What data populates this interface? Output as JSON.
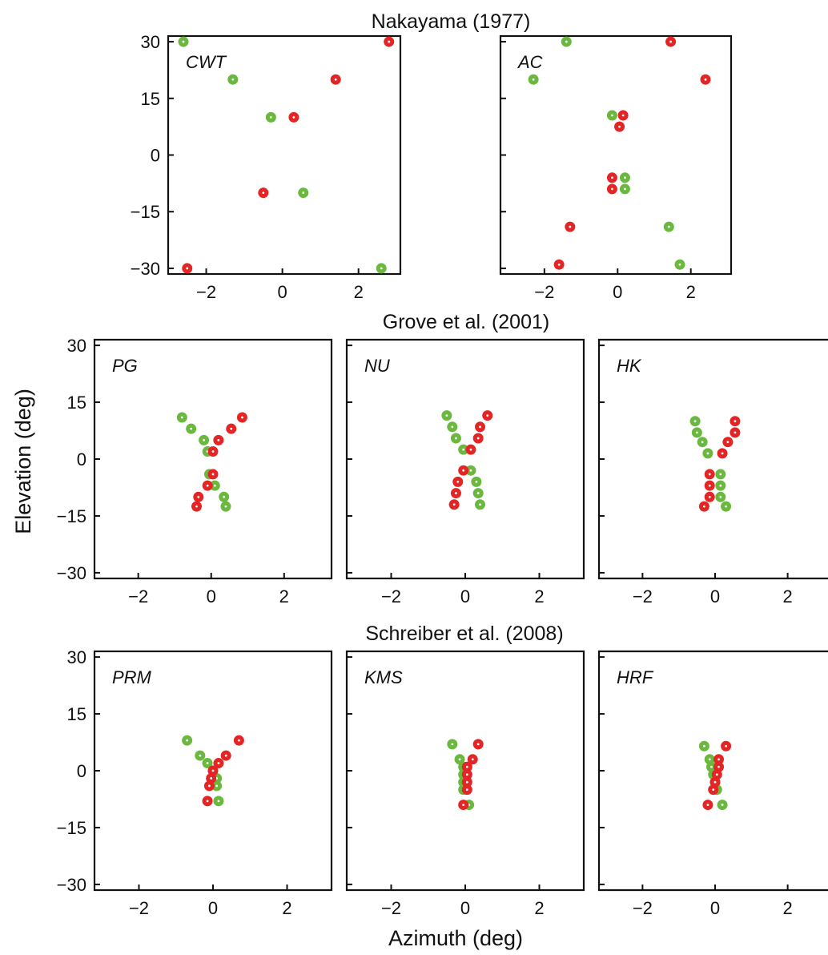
{
  "figure": {
    "xlabel": "Azimuth (deg)",
    "ylabel": "Elevation (deg)"
  },
  "groups": [
    {
      "title": "Nakayama (1977)"
    },
    {
      "title": "Grove et al. (2001)"
    },
    {
      "title": "Schreiber et al. (2008)"
    }
  ],
  "colors": {
    "green": "#6ab83e",
    "red": "#e42525",
    "axis": "#111111"
  },
  "chart_data": [
    {
      "type": "scatter",
      "group": "Nakayama (1977)",
      "panel_label": "CWT",
      "xlim": [
        -3,
        3.1
      ],
      "ylim": [
        -31.5,
        31.5
      ],
      "xticks": [
        -2,
        0,
        2
      ],
      "yticks": [
        30,
        15,
        0,
        -15,
        -30
      ],
      "series": [
        {
          "color": "green",
          "points": [
            [
              -2.6,
              30
            ],
            [
              -1.3,
              20
            ],
            [
              -0.3,
              10
            ],
            [
              0.55,
              -10
            ],
            [
              2.6,
              -30
            ]
          ]
        },
        {
          "color": "red",
          "points": [
            [
              2.8,
              30
            ],
            [
              1.4,
              20
            ],
            [
              0.3,
              10
            ],
            [
              -0.5,
              -10
            ],
            [
              -2.5,
              -30
            ]
          ]
        }
      ]
    },
    {
      "type": "scatter",
      "group": "Nakayama (1977)",
      "panel_label": "AC",
      "xlim": [
        -3.2,
        3.1
      ],
      "ylim": [
        -31.5,
        31.5
      ],
      "xticks": [
        -2,
        0,
        2
      ],
      "yticks": [
        30,
        15,
        0,
        -15,
        -30
      ],
      "series": [
        {
          "color": "green",
          "points": [
            [
              -1.4,
              30
            ],
            [
              -2.3,
              20
            ],
            [
              -0.15,
              10.5
            ],
            [
              0.2,
              -6
            ],
            [
              0.2,
              -9
            ],
            [
              1.4,
              -19
            ],
            [
              1.7,
              -29
            ]
          ]
        },
        {
          "color": "red",
          "points": [
            [
              1.45,
              30
            ],
            [
              2.4,
              20
            ],
            [
              0.15,
              10.5
            ],
            [
              0.05,
              7.5
            ],
            [
              -0.15,
              -6
            ],
            [
              -0.15,
              -9
            ],
            [
              -1.3,
              -19
            ],
            [
              -1.6,
              -29
            ]
          ]
        }
      ]
    },
    {
      "type": "scatter",
      "group": "Grove et al. (2001)",
      "panel_label": "PG",
      "xlim": [
        -3.2,
        3.3
      ],
      "ylim": [
        -31.5,
        31.5
      ],
      "xticks": [
        -2,
        0,
        2
      ],
      "yticks": [
        30,
        15,
        0,
        -15,
        -30
      ],
      "series": [
        {
          "color": "green",
          "points": [
            [
              -0.8,
              11
            ],
            [
              -0.55,
              8
            ],
            [
              -0.2,
              5
            ],
            [
              -0.1,
              2
            ],
            [
              -0.05,
              -4
            ],
            [
              0.1,
              -7
            ],
            [
              0.35,
              -10
            ],
            [
              0.4,
              -12.5
            ]
          ]
        },
        {
          "color": "red",
          "points": [
            [
              0.85,
              11
            ],
            [
              0.55,
              8
            ],
            [
              0.2,
              5
            ],
            [
              0.05,
              2
            ],
            [
              0.05,
              -4
            ],
            [
              -0.1,
              -7
            ],
            [
              -0.35,
              -10
            ],
            [
              -0.4,
              -12.5
            ]
          ]
        }
      ]
    },
    {
      "type": "scatter",
      "group": "Grove et al. (2001)",
      "panel_label": "NU",
      "xlim": [
        -3.2,
        3.2
      ],
      "ylim": [
        -31.5,
        31.5
      ],
      "xticks": [
        -2,
        0,
        2
      ],
      "yticks": [
        30,
        15,
        0,
        -15,
        -30
      ],
      "series": [
        {
          "color": "green",
          "points": [
            [
              -0.5,
              11.5
            ],
            [
              -0.35,
              8.5
            ],
            [
              -0.25,
              5.5
            ],
            [
              -0.05,
              2.5
            ],
            [
              0.15,
              -3
            ],
            [
              0.3,
              -6
            ],
            [
              0.35,
              -9
            ],
            [
              0.4,
              -12
            ]
          ]
        },
        {
          "color": "red",
          "points": [
            [
              0.6,
              11.5
            ],
            [
              0.4,
              8.5
            ],
            [
              0.35,
              5.5
            ],
            [
              0.15,
              2.5
            ],
            [
              -0.05,
              -3
            ],
            [
              -0.2,
              -6
            ],
            [
              -0.25,
              -9
            ],
            [
              -0.3,
              -12
            ]
          ]
        }
      ]
    },
    {
      "type": "scatter",
      "group": "Grove et al. (2001)",
      "panel_label": "HK",
      "xlim": [
        -3.2,
        3.2
      ],
      "ylim": [
        -31.5,
        31.5
      ],
      "xticks": [
        -2,
        0,
        2
      ],
      "yticks": [
        30,
        15,
        0,
        -15,
        -30
      ],
      "series": [
        {
          "color": "green",
          "points": [
            [
              -0.55,
              10
            ],
            [
              -0.5,
              7
            ],
            [
              -0.35,
              4.5
            ],
            [
              -0.2,
              1.5
            ],
            [
              0.15,
              -4
            ],
            [
              0.15,
              -7
            ],
            [
              0.15,
              -10
            ],
            [
              0.3,
              -12.5
            ]
          ]
        },
        {
          "color": "red",
          "points": [
            [
              0.55,
              10
            ],
            [
              0.55,
              7
            ],
            [
              0.35,
              4.5
            ],
            [
              0.2,
              1.5
            ],
            [
              -0.15,
              -4
            ],
            [
              -0.15,
              -7
            ],
            [
              -0.15,
              -10
            ],
            [
              -0.3,
              -12.5
            ]
          ]
        }
      ]
    },
    {
      "type": "scatter",
      "group": "Schreiber et al. (2008)",
      "panel_label": "PRM",
      "xlim": [
        -3.2,
        3.2
      ],
      "ylim": [
        -31.5,
        31.5
      ],
      "xticks": [
        -2,
        0,
        2
      ],
      "yticks": [
        30,
        15,
        0,
        -15,
        -30
      ],
      "series": [
        {
          "color": "green",
          "points": [
            [
              -0.7,
              8
            ],
            [
              -0.35,
              4
            ],
            [
              -0.15,
              2
            ],
            [
              0,
              0
            ],
            [
              0.1,
              -2
            ],
            [
              0.1,
              -4
            ],
            [
              0.15,
              -8
            ]
          ]
        },
        {
          "color": "red",
          "points": [
            [
              0.7,
              8
            ],
            [
              0.35,
              4
            ],
            [
              0.15,
              2
            ],
            [
              0,
              0
            ],
            [
              -0.05,
              -2
            ],
            [
              -0.1,
              -4
            ],
            [
              -0.15,
              -8
            ]
          ]
        }
      ]
    },
    {
      "type": "scatter",
      "group": "Schreiber et al. (2008)",
      "panel_label": "KMS",
      "xlim": [
        -3.2,
        3.2
      ],
      "ylim": [
        -31.5,
        31.5
      ],
      "xticks": [
        -2,
        0,
        2
      ],
      "yticks": [
        30,
        15,
        0,
        -15,
        -30
      ],
      "series": [
        {
          "color": "green",
          "points": [
            [
              -0.35,
              7
            ],
            [
              -0.15,
              3
            ],
            [
              -0.05,
              1
            ],
            [
              -0.05,
              -1
            ],
            [
              -0.05,
              -3
            ],
            [
              -0.05,
              -5
            ],
            [
              0.1,
              -9
            ]
          ]
        },
        {
          "color": "red",
          "points": [
            [
              0.35,
              7
            ],
            [
              0.2,
              3
            ],
            [
              0.05,
              1
            ],
            [
              0.05,
              -1
            ],
            [
              0.05,
              -3
            ],
            [
              0.05,
              -5
            ],
            [
              -0.05,
              -9
            ]
          ]
        }
      ]
    },
    {
      "type": "scatter",
      "group": "Schreiber et al. (2008)",
      "panel_label": "HRF",
      "xlim": [
        -3.2,
        3.2
      ],
      "ylim": [
        -31.5,
        31.5
      ],
      "xticks": [
        -2,
        0,
        2
      ],
      "yticks": [
        30,
        15,
        0,
        -15,
        -30
      ],
      "series": [
        {
          "color": "green",
          "points": [
            [
              -0.3,
              6.5
            ],
            [
              -0.15,
              3
            ],
            [
              -0.1,
              1
            ],
            [
              -0.05,
              -1
            ],
            [
              0,
              -3
            ],
            [
              0.05,
              -5
            ],
            [
              0.2,
              -9
            ]
          ]
        },
        {
          "color": "red",
          "points": [
            [
              0.3,
              6.5
            ],
            [
              0.1,
              3
            ],
            [
              0.1,
              1
            ],
            [
              0.05,
              -1
            ],
            [
              0,
              -3
            ],
            [
              -0.05,
              -5
            ],
            [
              -0.2,
              -9
            ]
          ]
        }
      ]
    }
  ]
}
